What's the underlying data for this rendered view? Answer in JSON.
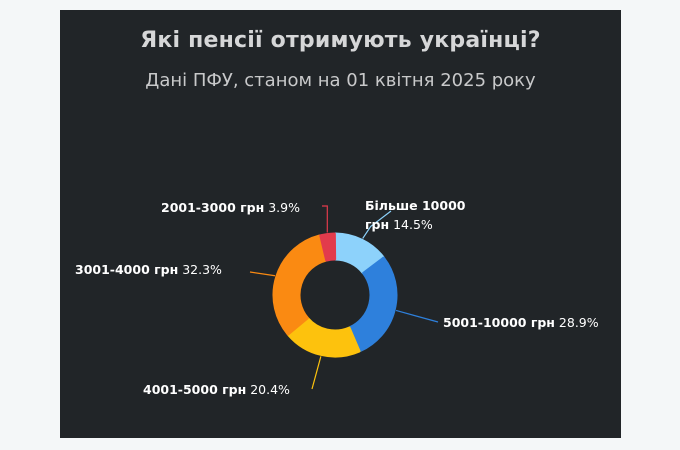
{
  "chart_data": {
    "type": "pie",
    "variant": "donut",
    "title": "Які пенсії отримують українці?",
    "subtitle": "Дані ПФУ, станом на 01 квітня 2025 року",
    "slices": [
      {
        "label": "Більше 10000 грн",
        "value": 14.5,
        "value_label": "14.5%",
        "color": "#8dd2fb"
      },
      {
        "label": "5001-10000 грн",
        "value": 28.9,
        "value_label": "28.9%",
        "color": "#2e80dc"
      },
      {
        "label": "4001-5000 грн",
        "value": 20.4,
        "value_label": "20.4%",
        "color": "#fdc20d"
      },
      {
        "label": "3001-4000 грн",
        "value": 32.3,
        "value_label": "32.3%",
        "color": "#fa8a12"
      },
      {
        "label": "2001-3000 грн",
        "value": 3.9,
        "value_label": "3.9%",
        "color": "#e23b4c"
      }
    ],
    "label_lines": [
      [
        "Більше 10000",
        "грн"
      ],
      [
        "5001-10000 грн"
      ],
      [
        "4001-5000 грн"
      ],
      [
        "3001-4000 грн"
      ],
      [
        "2001-3000 грн"
      ]
    ],
    "background": "#212528",
    "legend": "none"
  }
}
